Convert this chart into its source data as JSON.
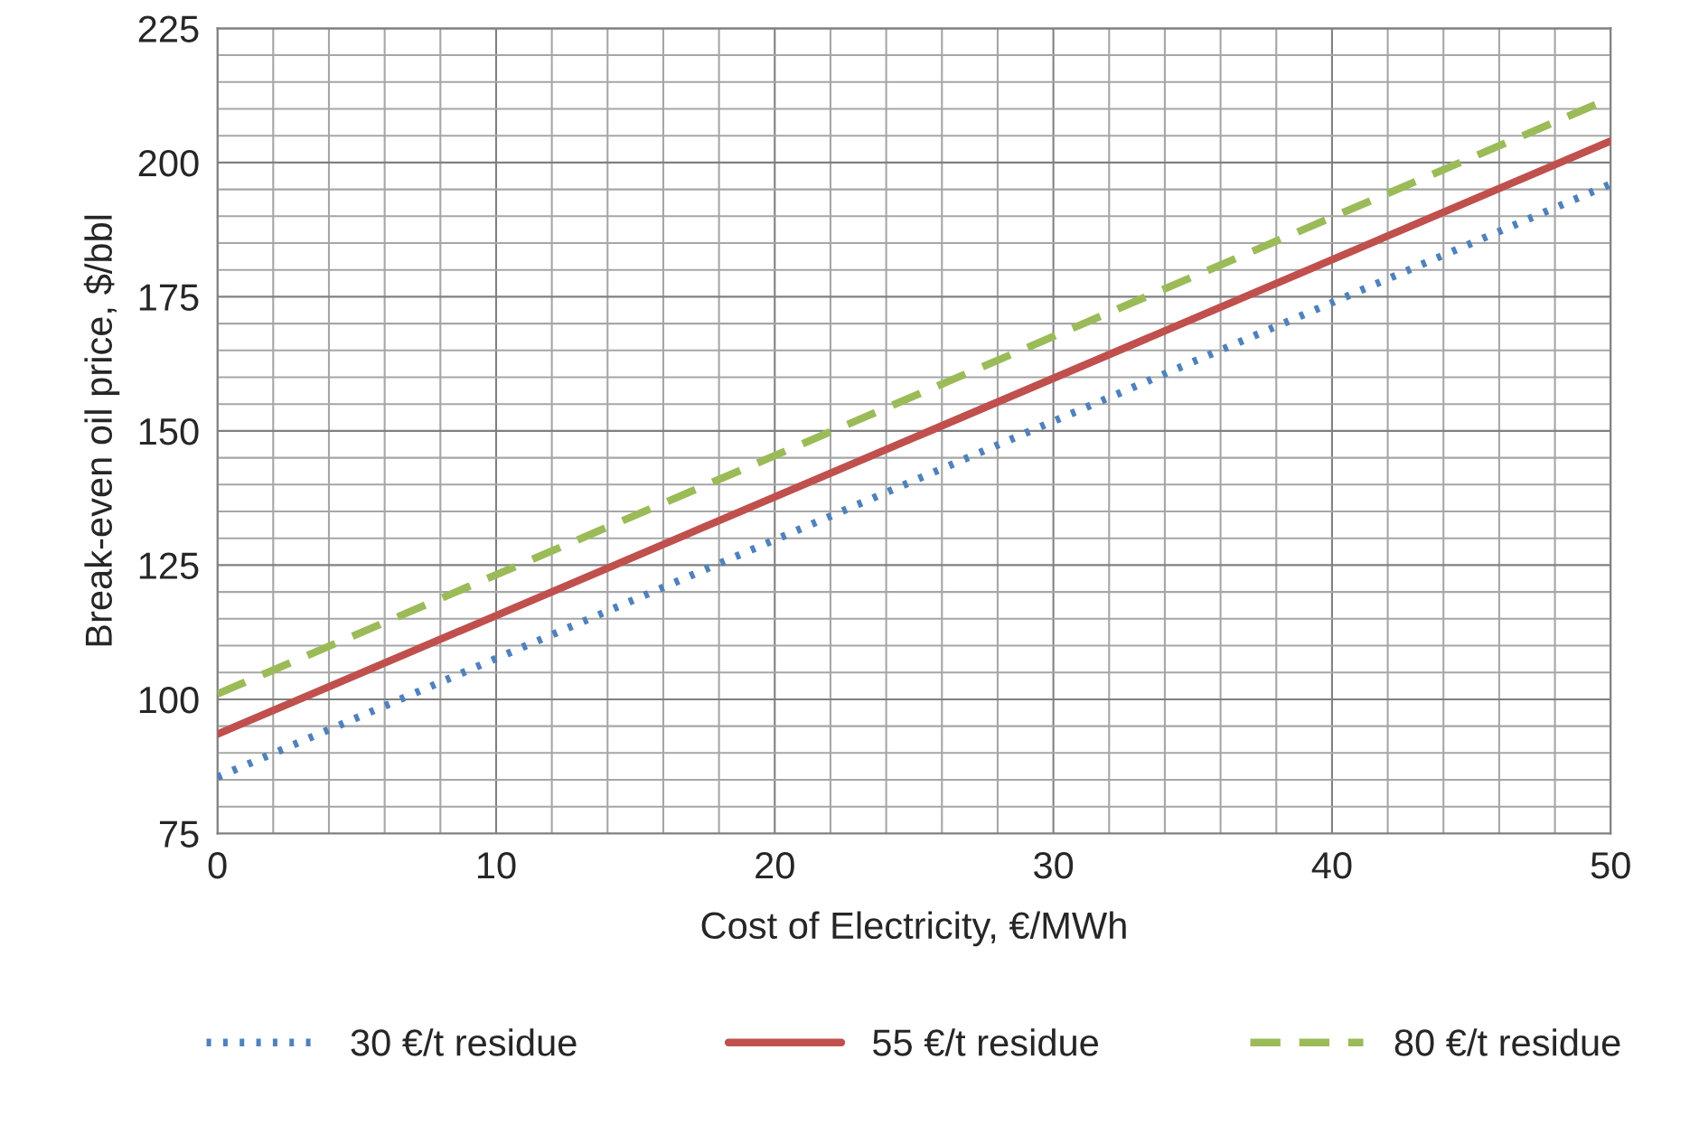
{
  "chart_data": {
    "type": "line",
    "xlabel": "Cost of Electricity, €/MWh",
    "ylabel": "Break-even oil price, $/bbl",
    "x": [
      0,
      50
    ],
    "series": [
      {
        "name": "30 €/t residue",
        "color": "#4f81bd",
        "line_style": "dotted",
        "values": [
          85.5,
          196
        ]
      },
      {
        "name": "55 €/t residue",
        "color": "#c0504d",
        "line_style": "solid",
        "values": [
          93.5,
          204
        ]
      },
      {
        "name": "80 €/t residue",
        "color": "#9bbb59",
        "line_style": "dashed",
        "values": [
          101,
          212
        ]
      }
    ],
    "xlim": [
      0,
      50
    ],
    "ylim": [
      75,
      225
    ],
    "xticks": [
      0,
      {
        "value": 2,
        "label": null
      },
      {
        "value": 4,
        "label": null
      },
      {
        "value": 6,
        "label": null
      },
      {
        "value": 8,
        "label": null
      },
      10,
      {
        "value": 12,
        "label": null
      },
      {
        "value": 14,
        "label": null
      },
      {
        "value": 16,
        "label": null
      },
      {
        "value": 18,
        "label": null
      },
      20,
      {
        "value": 22,
        "label": null
      },
      {
        "value": 24,
        "label": null
      },
      {
        "value": 26,
        "label": null
      },
      {
        "value": 28,
        "label": null
      },
      30,
      {
        "value": 32,
        "label": null
      },
      {
        "value": 34,
        "label": null
      },
      {
        "value": 36,
        "label": null
      },
      {
        "value": 38,
        "label": null
      },
      40,
      {
        "value": 42,
        "label": null
      },
      {
        "value": 44,
        "label": null
      },
      {
        "value": 46,
        "label": null
      },
      {
        "value": 48,
        "label": null
      },
      50
    ],
    "yticks": [
      75,
      {
        "value": 80,
        "label": null
      },
      {
        "value": 85,
        "label": null
      },
      {
        "value": 90,
        "label": null
      },
      {
        "value": 95,
        "label": null
      },
      100,
      {
        "value": 105,
        "label": null
      },
      {
        "value": 110,
        "label": null
      },
      {
        "value": 115,
        "label": null
      },
      {
        "value": 120,
        "label": null
      },
      125,
      {
        "value": 130,
        "label": null
      },
      {
        "value": 135,
        "label": null
      },
      {
        "value": 140,
        "label": null
      },
      {
        "value": 145,
        "label": null
      },
      150,
      {
        "value": 155,
        "label": null
      },
      {
        "value": 160,
        "label": null
      },
      {
        "value": 165,
        "label": null
      },
      {
        "value": 170,
        "label": null
      },
      175,
      {
        "value": 180,
        "label": null
      },
      {
        "value": 185,
        "label": null
      },
      {
        "value": 190,
        "label": null
      },
      {
        "value": 195,
        "label": null
      },
      200,
      {
        "value": 205,
        "label": null
      },
      {
        "value": 210,
        "label": null
      },
      {
        "value": 215,
        "label": null
      },
      {
        "value": 220,
        "label": null
      },
      225
    ],
    "grid": true,
    "legend": "bottom"
  }
}
